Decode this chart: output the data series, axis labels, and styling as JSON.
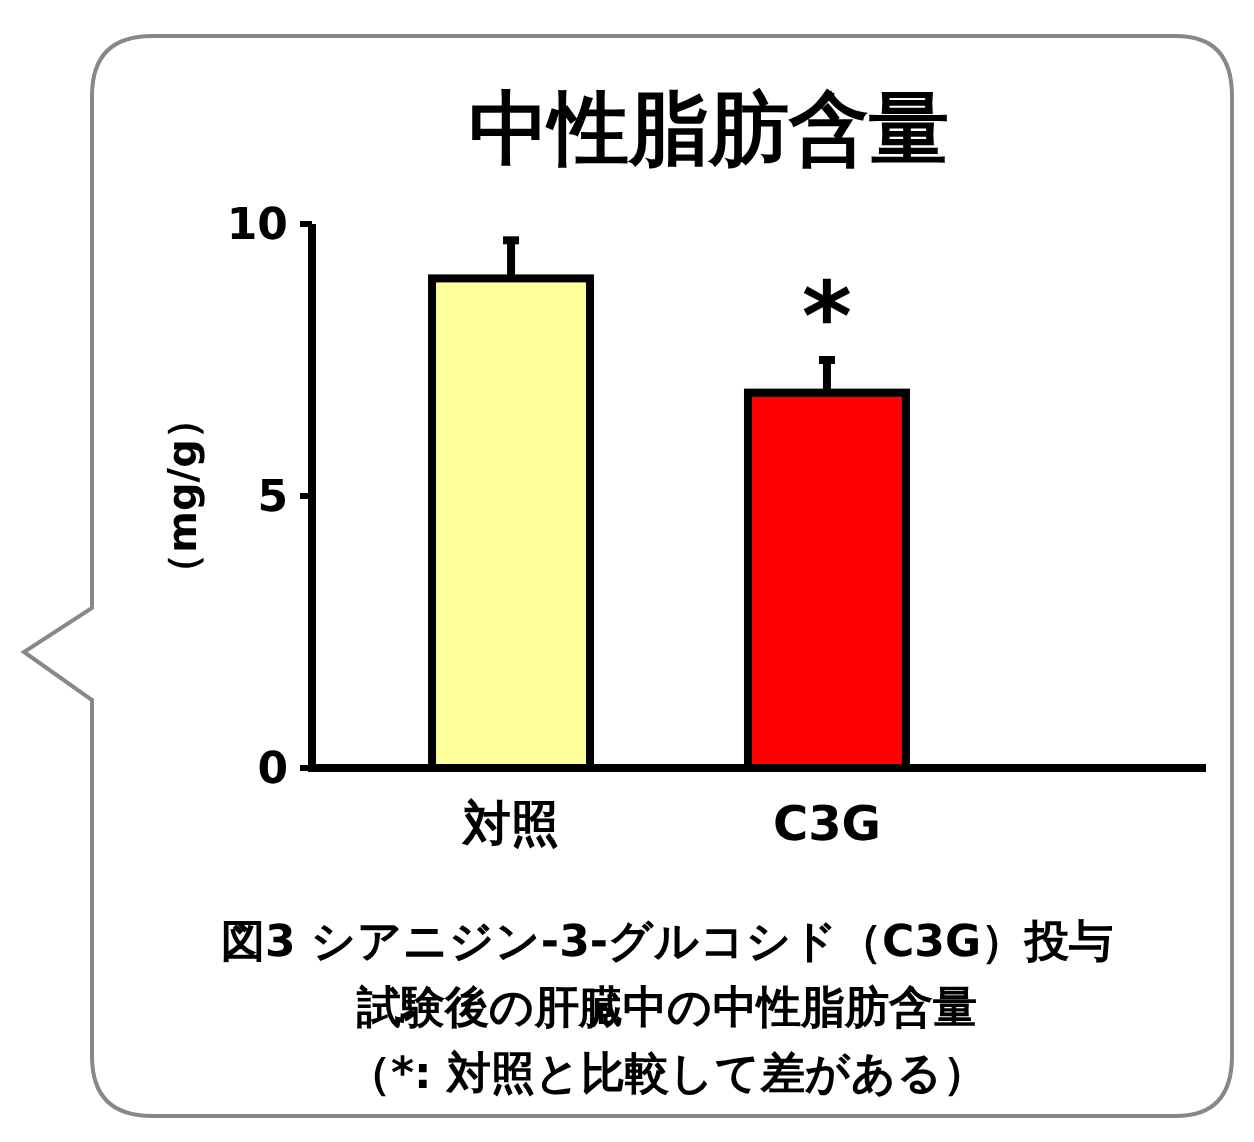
{
  "chart_data": {
    "type": "bar",
    "title": "中性脂肪含量",
    "ylabel": "（mg/g）",
    "categories": [
      "対照",
      "C3G"
    ],
    "values": [
      9.0,
      6.9
    ],
    "colors": [
      "#ffff99",
      "#ff0000"
    ],
    "errors": [
      0.7,
      0.6
    ],
    "ylim": [
      0,
      10
    ],
    "yticks": [
      0,
      5,
      10
    ],
    "grid": false,
    "annotations": [
      "*",
      "図3  シアニジン-3-グルコシド（C3G）投与試験後の肝臓中の中性脂肪含量",
      "（*: 対照と比較して差がある）"
    ]
  }
}
